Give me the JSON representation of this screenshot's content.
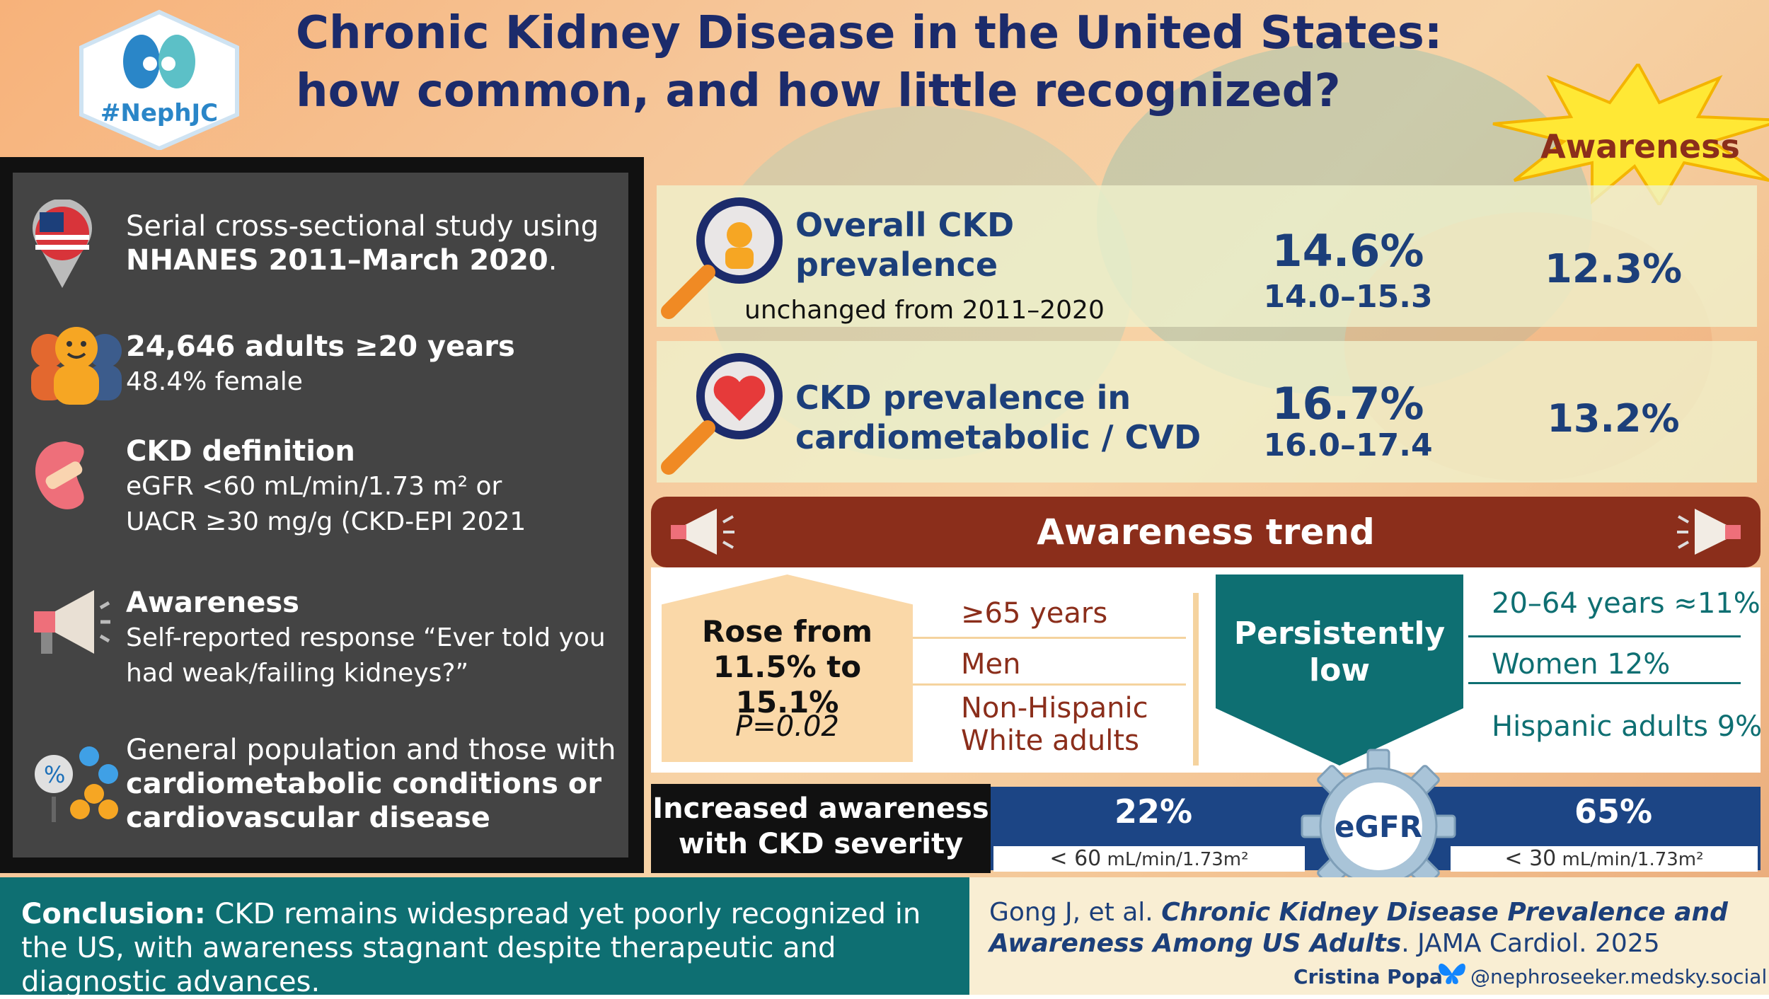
{
  "header": {
    "logo_text": "#NephJC",
    "title": "Chronic Kidney Disease in the United States: how common, and how little recognized?"
  },
  "study": {
    "design_line1": "Serial cross-sectional study using",
    "design_line2": "NHANES 2011–March 2020",
    "design_tail": ".",
    "population_bold": "24,646 adults ≥20 years",
    "population_sub": "48.4% female",
    "ckd_def_title": "CKD definition",
    "ckd_def_line1": "eGFR <60 mL/min/1.73 m² or",
    "ckd_def_line2": "UACR ≥30 mg/g (CKD-EPI 2021",
    "awareness_title": "Awareness",
    "awareness_line1": "Self-reported response “Ever told you",
    "awareness_line2": "had weak/failing kidneys?”",
    "groups_line1": "General population and those with",
    "groups_bold1": "cardiometabolic conditions or",
    "groups_bold2": "cardiovascular disease"
  },
  "prevalence": {
    "awareness_header": "Awareness",
    "overall": {
      "label_line1": "Overall CKD",
      "label_line2": "prevalence",
      "note": "unchanged from 2011–2020",
      "value": "14.6%",
      "ci": "14.0–15.3",
      "awareness": "12.3%"
    },
    "cardio": {
      "label_line1": "CKD prevalence in",
      "label_line2": "cardiometabolic / CVD",
      "value": "16.7%",
      "ci": "16.0–17.4",
      "awareness": "13.2%"
    }
  },
  "trend": {
    "title": "Awareness trend",
    "rose_line1": "Rose from",
    "rose_line2": "11.5% to 15.1%",
    "p_value": "P=0.02",
    "rose_items": [
      "≥65 years",
      "Men",
      "Non-Hispanic",
      "White adults"
    ],
    "persist_line1": "Persistently",
    "persist_line2": "low",
    "low_items": [
      "20–64 years ≈11%",
      "Women 12%",
      "Hispanic adults 9%"
    ]
  },
  "severity": {
    "label_line1": "Increased awareness",
    "label_line2": "with CKD severity",
    "gear_label": "eGFR",
    "left_value": "22%",
    "left_threshold": "< 60",
    "left_unit": "mL/min/1.73m²",
    "right_value": "65%",
    "right_threshold": "< 30",
    "right_unit": "mL/min/1.73m²"
  },
  "footer": {
    "conclusion_bold": "Conclusion:",
    "conclusion_text": "CKD remains widespread yet poorly recognized in the US, with awareness stagnant despite therapeutic and diagnostic advances.",
    "cite_authors": "Gong J, et al.",
    "cite_title": "Chronic Kidney Disease Prevalence and Awareness Among US Adults",
    "cite_journal": ". JAMA Cardiol. 2025",
    "author": "Cristina Popa",
    "handle": "@nephroseeker.medsky.social"
  },
  "colors": {
    "navy": "#1c2b6b",
    "maroon": "#8b2e1b",
    "teal": "#0e6f72",
    "blue": "#1c4585",
    "star": "#ffe835"
  }
}
